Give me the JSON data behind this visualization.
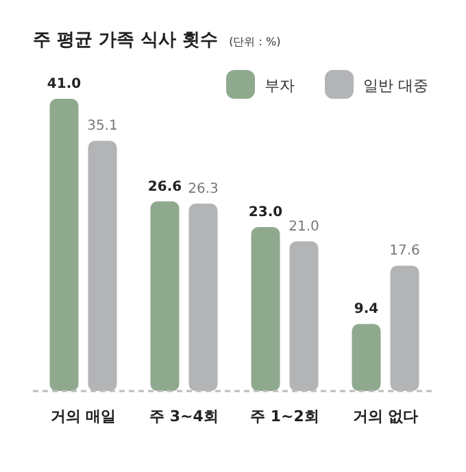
{
  "chart_data": {
    "type": "bar",
    "title": "주 평균 가족 식사 횟수",
    "subtitle": "(단위 : %)",
    "categories": [
      "거의 매일",
      "주 3~4회",
      "주 1~2회",
      "거의 없다"
    ],
    "series": [
      {
        "name": "부자",
        "color": "#8fa98f",
        "values": [
          41.0,
          26.6,
          23.0,
          9.4
        ],
        "value_labels": [
          "41.0",
          "26.6",
          "23.0",
          "9.4"
        ]
      },
      {
        "name": "일반 대중",
        "color": "#b3b4b6",
        "values": [
          35.1,
          26.3,
          21.0,
          17.6
        ],
        "value_labels": [
          "35.1",
          "26.3",
          "21.0",
          "17.6"
        ]
      }
    ],
    "relative": false,
    "legend": "top right"
  }
}
